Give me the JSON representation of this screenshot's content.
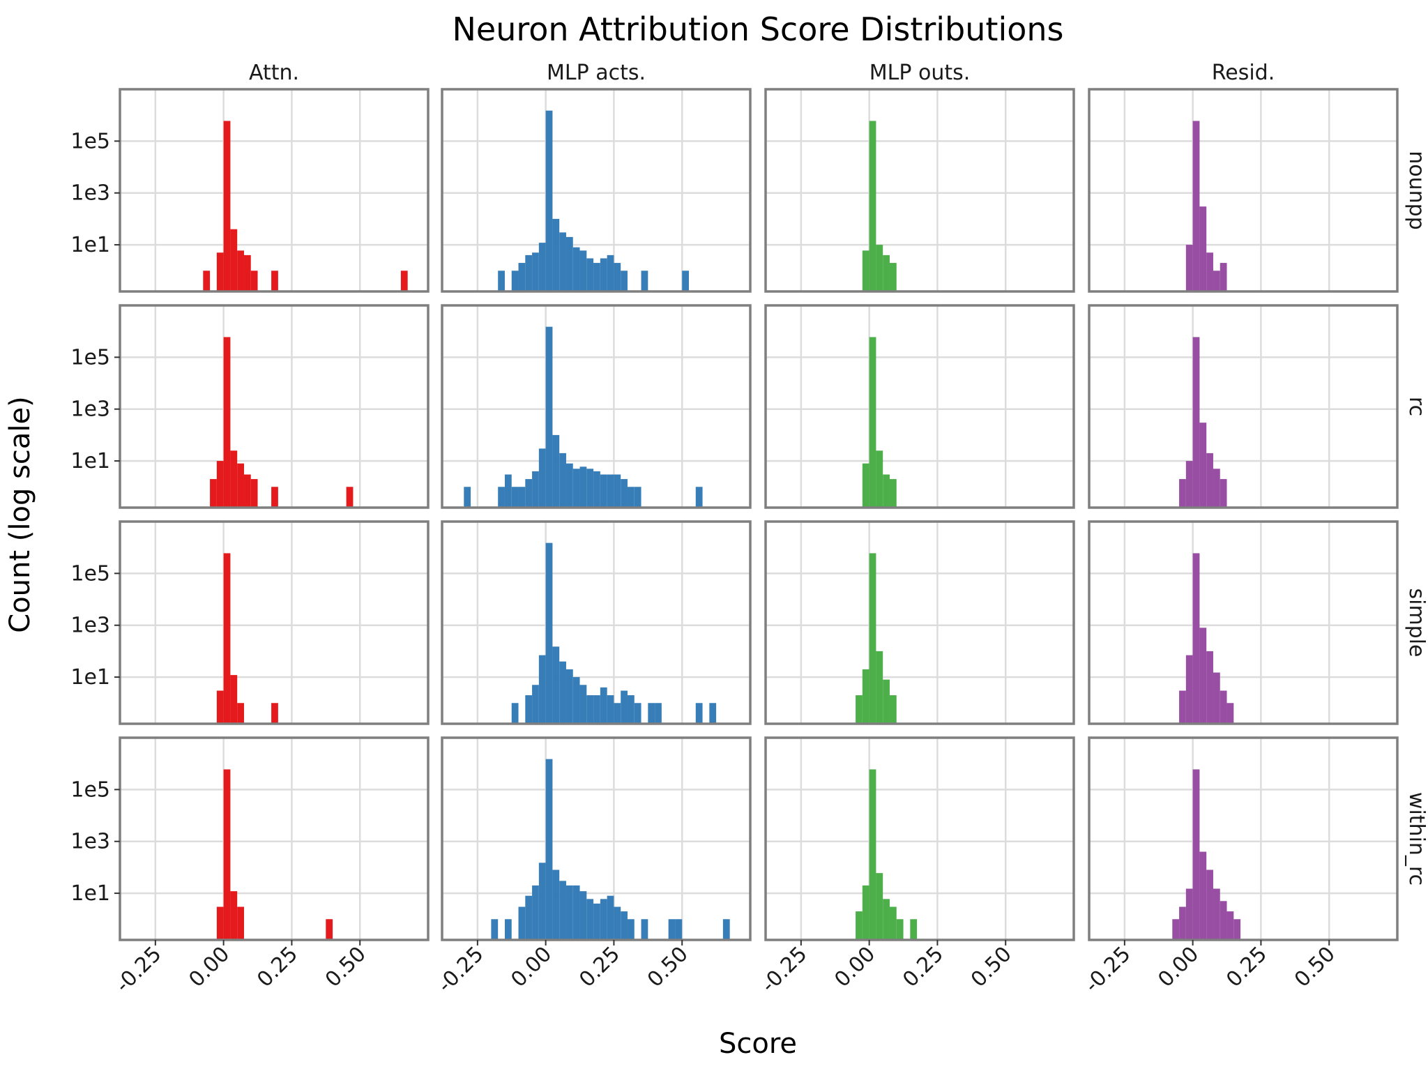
{
  "chart_data": {
    "type": "bar",
    "title": "Neuron Attribution Score Distributions",
    "xlabel": "Score",
    "ylabel": "Count (log scale)",
    "xlim": [
      -0.38,
      0.75
    ],
    "xticks": [
      -0.25,
      0.0,
      0.25,
      0.5
    ],
    "xtick_labels": [
      "-0.25",
      "0.00",
      "0.25",
      "0.50"
    ],
    "ylog_range": [
      -0.8,
      7.0
    ],
    "yticks": [
      10,
      1000,
      100000
    ],
    "ytick_labels": [
      "1e1",
      "1e3",
      "1e5"
    ],
    "bin_width": 0.025,
    "columns": [
      {
        "name": "Attn.",
        "color": "#e41a1c"
      },
      {
        "name": "MLP acts.",
        "color": "#377eb8"
      },
      {
        "name": "MLP outs.",
        "color": "#4daf4a"
      },
      {
        "name": "Resid.",
        "color": "#984ea3"
      }
    ],
    "rows": [
      "nounpp",
      "rc",
      "simple",
      "within_rc"
    ],
    "panels": [
      [
        {
          "bins": [
            [
              -0.075,
              1
            ],
            [
              -0.025,
              5
            ],
            [
              0,
              600000
            ],
            [
              0.025,
              40
            ],
            [
              0.05,
              6
            ],
            [
              0.075,
              4
            ],
            [
              0.1,
              1
            ],
            [
              0.175,
              1
            ],
            [
              0.65,
              1
            ]
          ]
        },
        {
          "bins": [
            [
              -0.175,
              1
            ],
            [
              -0.125,
              1
            ],
            [
              -0.1,
              2
            ],
            [
              -0.075,
              4
            ],
            [
              -0.05,
              5
            ],
            [
              -0.025,
              12
            ],
            [
              0,
              1500000
            ],
            [
              0.025,
              100
            ],
            [
              0.05,
              30
            ],
            [
              0.075,
              20
            ],
            [
              0.1,
              8
            ],
            [
              0.125,
              6
            ],
            [
              0.15,
              3
            ],
            [
              0.175,
              2
            ],
            [
              0.2,
              3
            ],
            [
              0.225,
              4
            ],
            [
              0.25,
              2
            ],
            [
              0.275,
              1
            ],
            [
              0.35,
              1
            ],
            [
              0.5,
              1
            ]
          ]
        },
        {
          "bins": [
            [
              -0.025,
              6
            ],
            [
              0,
              600000
            ],
            [
              0.025,
              10
            ],
            [
              0.05,
              4
            ],
            [
              0.075,
              2
            ]
          ]
        },
        {
          "bins": [
            [
              -0.025,
              10
            ],
            [
              0,
              600000
            ],
            [
              0.025,
              300
            ],
            [
              0.05,
              5
            ],
            [
              0.075,
              1
            ],
            [
              0.1,
              2
            ]
          ]
        }
      ],
      [
        {
          "bins": [
            [
              -0.05,
              2
            ],
            [
              -0.025,
              10
            ],
            [
              0,
              600000
            ],
            [
              0.025,
              25
            ],
            [
              0.05,
              8
            ],
            [
              0.075,
              3
            ],
            [
              0.1,
              2
            ],
            [
              0.175,
              1
            ],
            [
              0.45,
              1
            ]
          ]
        },
        {
          "bins": [
            [
              -0.3,
              1
            ],
            [
              -0.175,
              1
            ],
            [
              -0.15,
              3
            ],
            [
              -0.125,
              1
            ],
            [
              -0.1,
              1
            ],
            [
              -0.075,
              2
            ],
            [
              -0.05,
              4
            ],
            [
              -0.025,
              30
            ],
            [
              0,
              1500000
            ],
            [
              0.025,
              100
            ],
            [
              0.05,
              20
            ],
            [
              0.075,
              8
            ],
            [
              0.1,
              5
            ],
            [
              0.125,
              6
            ],
            [
              0.15,
              5
            ],
            [
              0.175,
              4
            ],
            [
              0.2,
              3
            ],
            [
              0.225,
              3
            ],
            [
              0.25,
              3
            ],
            [
              0.275,
              2
            ],
            [
              0.3,
              1
            ],
            [
              0.325,
              1
            ],
            [
              0.55,
              1
            ]
          ]
        },
        {
          "bins": [
            [
              -0.025,
              8
            ],
            [
              0,
              600000
            ],
            [
              0.025,
              25
            ],
            [
              0.05,
              3
            ],
            [
              0.075,
              2
            ]
          ]
        },
        {
          "bins": [
            [
              -0.05,
              2
            ],
            [
              -0.025,
              10
            ],
            [
              0,
              600000
            ],
            [
              0.025,
              300
            ],
            [
              0.05,
              20
            ],
            [
              0.075,
              5
            ],
            [
              0.1,
              2
            ]
          ]
        }
      ],
      [
        {
          "bins": [
            [
              -0.025,
              3
            ],
            [
              0,
              600000
            ],
            [
              0.025,
              12
            ],
            [
              0.05,
              1
            ],
            [
              0.175,
              1
            ]
          ]
        },
        {
          "bins": [
            [
              -0.125,
              1
            ],
            [
              -0.075,
              2
            ],
            [
              -0.05,
              5
            ],
            [
              -0.025,
              70
            ],
            [
              0,
              1500000
            ],
            [
              0.025,
              150
            ],
            [
              0.05,
              40
            ],
            [
              0.075,
              20
            ],
            [
              0.1,
              10
            ],
            [
              0.125,
              5
            ],
            [
              0.15,
              2
            ],
            [
              0.175,
              2
            ],
            [
              0.2,
              4
            ],
            [
              0.225,
              2
            ],
            [
              0.25,
              1
            ],
            [
              0.275,
              3
            ],
            [
              0.3,
              2
            ],
            [
              0.325,
              1
            ],
            [
              0.375,
              1
            ],
            [
              0.4,
              1
            ],
            [
              0.55,
              1
            ],
            [
              0.6,
              1
            ]
          ]
        },
        {
          "bins": [
            [
              -0.05,
              2
            ],
            [
              -0.025,
              20
            ],
            [
              0,
              600000
            ],
            [
              0.025,
              100
            ],
            [
              0.05,
              8
            ],
            [
              0.075,
              2
            ]
          ]
        },
        {
          "bins": [
            [
              -0.05,
              3
            ],
            [
              -0.025,
              70
            ],
            [
              0,
              600000
            ],
            [
              0.025,
              800
            ],
            [
              0.05,
              100
            ],
            [
              0.075,
              15
            ],
            [
              0.1,
              3
            ],
            [
              0.125,
              1
            ]
          ]
        }
      ],
      [
        {
          "bins": [
            [
              -0.025,
              3
            ],
            [
              0,
              600000
            ],
            [
              0.025,
              12
            ],
            [
              0.05,
              3
            ],
            [
              0.375,
              1
            ]
          ]
        },
        {
          "bins": [
            [
              -0.2,
              1
            ],
            [
              -0.15,
              1
            ],
            [
              -0.1,
              3
            ],
            [
              -0.075,
              8
            ],
            [
              -0.05,
              20
            ],
            [
              -0.025,
              150
            ],
            [
              0,
              1500000
            ],
            [
              0.025,
              80
            ],
            [
              0.05,
              30
            ],
            [
              0.075,
              20
            ],
            [
              0.1,
              20
            ],
            [
              0.125,
              12
            ],
            [
              0.15,
              6
            ],
            [
              0.175,
              4
            ],
            [
              0.2,
              6
            ],
            [
              0.225,
              8
            ],
            [
              0.25,
              3
            ],
            [
              0.275,
              2
            ],
            [
              0.3,
              1
            ],
            [
              0.35,
              1
            ],
            [
              0.45,
              1
            ],
            [
              0.475,
              1
            ],
            [
              0.65,
              1
            ]
          ]
        },
        {
          "bins": [
            [
              -0.05,
              2
            ],
            [
              -0.025,
              20
            ],
            [
              0,
              600000
            ],
            [
              0.025,
              60
            ],
            [
              0.05,
              6
            ],
            [
              0.075,
              3
            ],
            [
              0.1,
              1
            ],
            [
              0.15,
              1
            ]
          ]
        },
        {
          "bins": [
            [
              -0.075,
              1
            ],
            [
              -0.05,
              3
            ],
            [
              -0.025,
              15
            ],
            [
              0,
              600000
            ],
            [
              0.025,
              400
            ],
            [
              0.05,
              80
            ],
            [
              0.075,
              15
            ],
            [
              0.1,
              5
            ],
            [
              0.125,
              2
            ],
            [
              0.15,
              1
            ]
          ]
        }
      ]
    ]
  }
}
